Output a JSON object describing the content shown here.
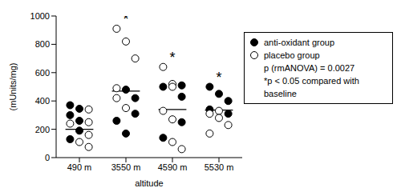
{
  "chart_data": {
    "type": "scatter",
    "categories": [
      "490 m",
      "3550 m",
      "4590 m",
      "5530 m"
    ],
    "x_label": "altitude",
    "y_label": "(mUnits/mg)",
    "ylim": [
      0,
      1000
    ],
    "yticks": [
      0,
      200,
      400,
      600,
      800,
      1000
    ],
    "grid": false,
    "legend": "right",
    "series": [
      {
        "name": "anti-oxidant group",
        "color": "#000000",
        "marker": "filled",
        "values": [
          [
            370,
            345,
            300,
            260,
            190,
            130
          ],
          [
            480,
            420,
            310,
            260,
            170
          ],
          [
            510,
            500,
            430,
            250,
            140
          ],
          [
            500,
            450,
            400,
            340,
            310
          ]
        ]
      },
      {
        "name": "placebo group",
        "color": "#000000",
        "marker": "open",
        "values": [
          [
            340,
            250,
            240,
            160,
            110,
            75
          ],
          [
            910,
            820,
            700,
            490,
            420,
            350
          ],
          [
            640,
            520,
            500,
            330,
            270,
            110,
            60
          ],
          [
            330,
            310,
            280,
            230,
            170
          ]
        ]
      }
    ],
    "means": [
      200,
      470,
      340,
      335
    ],
    "annotations": [
      {
        "category": "3550 m",
        "text": "*"
      },
      {
        "category": "4590 m",
        "text": "*"
      },
      {
        "category": "5530 m",
        "text": "*"
      }
    ],
    "legend_notes": [
      "p (rmANOVA) = 0.0027",
      "*p < 0.05 compared with baseline"
    ]
  }
}
